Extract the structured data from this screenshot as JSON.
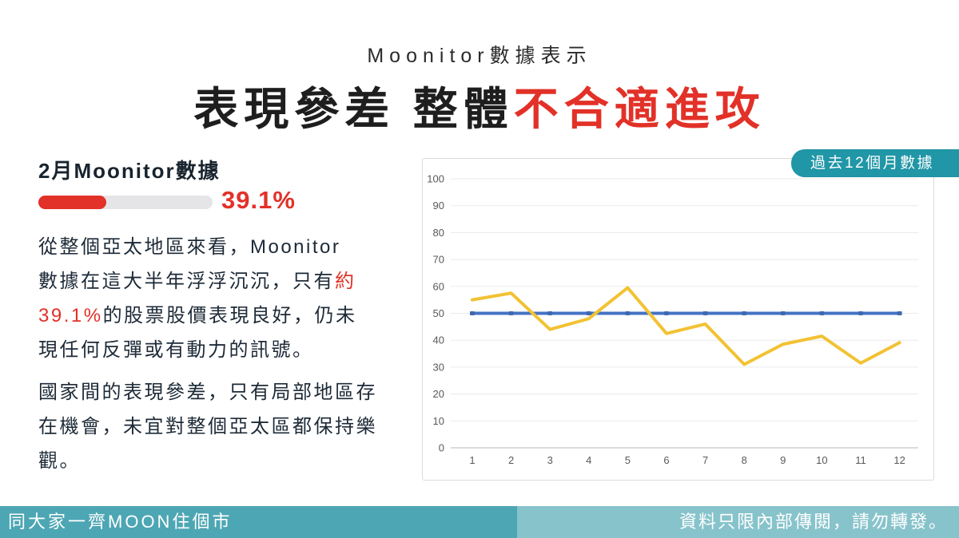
{
  "slide": {
    "subtitle": "Moonitor數據表示",
    "title_segments": [
      {
        "text": "表現參差 整體",
        "red": false
      },
      {
        "text": "不合適進攻",
        "red": true
      }
    ]
  },
  "left_panel": {
    "heading": "2月Moonitor數據",
    "progress": {
      "percent": 39.1,
      "value_label": "39.1%"
    },
    "paragraph1_lines": [
      [
        {
          "text": "從整個亞太地區來看，Moonitor"
        }
      ],
      [
        {
          "text": "數據在這大半年浮浮沉沉，只有"
        },
        {
          "text": "約",
          "red": true
        }
      ],
      [
        {
          "text": "39.1%",
          "red": true
        },
        {
          "text": "的股票股價表現良好，仍未"
        }
      ],
      [
        {
          "text": "現任何反彈或有動力的訊號。"
        }
      ]
    ],
    "paragraph2_lines": [
      [
        {
          "text": "國家間的表現參差，只有局部地區存"
        }
      ],
      [
        {
          "text": "在機會，未宜對整個亞太區都保持樂"
        }
      ],
      [
        {
          "text": "觀。"
        }
      ]
    ]
  },
  "chart_panel": {
    "badge_label": "過去12個月數據"
  },
  "chart_data": {
    "type": "line",
    "title": "",
    "xlabel": "",
    "ylabel": "",
    "x": [
      1,
      2,
      3,
      4,
      5,
      6,
      7,
      8,
      9,
      10,
      11,
      12
    ],
    "series": [
      {
        "name": "benchmark-50",
        "color": "#4472c4",
        "marker_color": "#3f68b0",
        "values": [
          50,
          50,
          50,
          50,
          50,
          50,
          50,
          50,
          50,
          50,
          50,
          50
        ]
      },
      {
        "name": "moonitor-monthly-data",
        "color": "#f2c233",
        "marker_color": null,
        "values": [
          55,
          57.5,
          44,
          48,
          59.5,
          42.5,
          46,
          31,
          38.5,
          41.5,
          31.5,
          39.1
        ]
      }
    ],
    "ylim": [
      0,
      100
    ],
    "ytick_step": 10,
    "grid": true,
    "legend_position": "none",
    "axis_label_color": "#595959",
    "gridline_color": "#eaeaea",
    "zeroline_color": "#b9b9b9"
  },
  "footer": {
    "left_text": "同大家一齊MOON住個市",
    "right_text": "資料只限內部傳閱，請勿轉發。"
  },
  "colors": {
    "accent_red": "#e23128",
    "badge_teal": "#2096a6",
    "footer_left_teal": "#4da6b3",
    "footer_right_teal": "#87c3cb"
  }
}
